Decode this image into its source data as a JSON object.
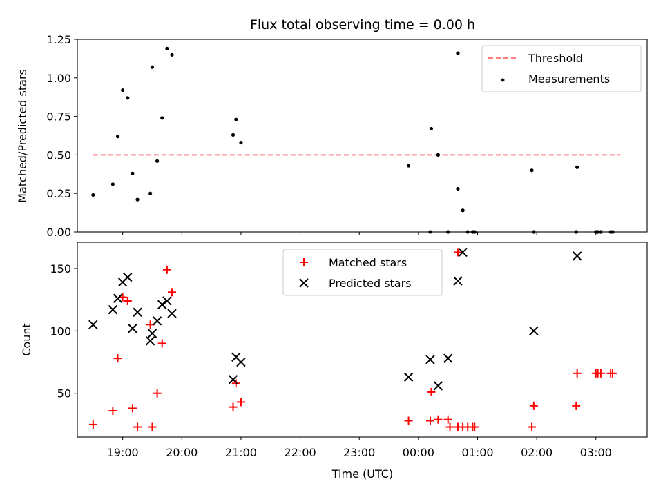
{
  "chart_data": [
    {
      "type": "scatter",
      "title": "Flux total observing time = 0.00 h",
      "ylabel": "Matched/Predicted stars",
      "xlabel": "",
      "xlim": [
        "18:14",
        "03:52"
      ],
      "ylim": [
        0,
        1.25
      ],
      "yticks": [
        0.0,
        0.25,
        0.5,
        0.75,
        1.0,
        1.25
      ],
      "ytick_labels": [
        "0.00",
        "0.25",
        "0.50",
        "0.75",
        "1.00",
        "1.25"
      ],
      "grid": false,
      "legend_position": "top-right",
      "series": [
        {
          "name": "Threshold",
          "kind": "line",
          "style": "dashed",
          "color": "#ff7f7f",
          "x": [
            "18:30",
            "03:25"
          ],
          "y": [
            0.5,
            0.5
          ]
        },
        {
          "name": "Measurements",
          "kind": "points",
          "color": "#000000",
          "x": [
            "18:30",
            "18:50",
            "18:55",
            "19:00",
            "19:05",
            "19:10",
            "19:15",
            "19:28",
            "19:30",
            "19:35",
            "19:40",
            "19:45",
            "19:50",
            "20:52",
            "20:55",
            "21:00",
            "23:50",
            "00:12",
            "00:13",
            "00:20",
            "00:30",
            "00:30",
            "00:40",
            "00:40",
            "00:45",
            "00:50",
            "00:55",
            "00:57",
            "01:55",
            "01:57",
            "02:40",
            "02:41",
            "03:00",
            "03:02",
            "03:05",
            "03:15",
            "03:17"
          ],
          "y": [
            0.24,
            0.31,
            0.62,
            0.92,
            0.87,
            0.38,
            0.21,
            0.25,
            1.07,
            0.46,
            0.74,
            1.19,
            1.15,
            0.63,
            0.73,
            0.58,
            0.43,
            0.0,
            0.67,
            0.5,
            0.0,
            0.0,
            0.28,
            1.16,
            0.14,
            0.0,
            0.0,
            0.0,
            0.4,
            0.0,
            0.0,
            0.42,
            0.0,
            0.0,
            0.0,
            0.0,
            0.0
          ]
        }
      ]
    },
    {
      "type": "scatter",
      "title": "",
      "ylabel": "Count",
      "xlabel": "Time (UTC)",
      "xlim": [
        "18:14",
        "03:52"
      ],
      "xticks": [
        "19:00",
        "20:00",
        "21:00",
        "22:00",
        "23:00",
        "00:00",
        "01:00",
        "02:00",
        "03:00"
      ],
      "ylim": [
        15,
        171
      ],
      "yticks": [
        50,
        100,
        150
      ],
      "ytick_labels": [
        "50",
        "100",
        "150"
      ],
      "grid": false,
      "legend_position": "top-center",
      "series": [
        {
          "name": "Matched stars",
          "marker": "plus",
          "color": "#ff0000",
          "x": [
            "18:30",
            "18:50",
            "18:55",
            "19:00",
            "19:05",
            "19:10",
            "19:15",
            "19:28",
            "19:30",
            "19:35",
            "19:40",
            "19:45",
            "19:50",
            "20:52",
            "20:55",
            "21:00",
            "23:50",
            "00:12",
            "00:13",
            "00:20",
            "00:30",
            "00:32",
            "00:40",
            "00:40",
            "00:45",
            "00:50",
            "00:55",
            "00:57",
            "01:55",
            "01:57",
            "02:40",
            "02:41",
            "03:00",
            "03:02",
            "03:05",
            "03:15",
            "03:17"
          ],
          "y": [
            25,
            36,
            78,
            127,
            124,
            38,
            23,
            105,
            23,
            50,
            90,
            149,
            131,
            39,
            58,
            43,
            28,
            28,
            51,
            29,
            29,
            23,
            163,
            23,
            23,
            23,
            23,
            23,
            23,
            40,
            40,
            66,
            66,
            66,
            66,
            66,
            66
          ]
        },
        {
          "name": "Predicted stars",
          "marker": "x",
          "color": "#000000",
          "x": [
            "18:30",
            "18:50",
            "18:55",
            "19:00",
            "19:05",
            "19:10",
            "19:15",
            "19:28",
            "19:30",
            "19:35",
            "19:40",
            "19:45",
            "19:50",
            "20:52",
            "20:55",
            "21:00",
            "23:50",
            "00:12",
            "00:20",
            "00:30",
            "00:40",
            "00:45",
            "01:57",
            "02:41"
          ],
          "y": [
            105,
            117,
            126,
            139,
            143,
            102,
            115,
            92,
            98,
            108,
            121,
            124,
            114,
            61,
            79,
            75,
            63,
            77,
            56,
            78,
            140,
            163,
            100,
            160
          ]
        }
      ]
    }
  ]
}
